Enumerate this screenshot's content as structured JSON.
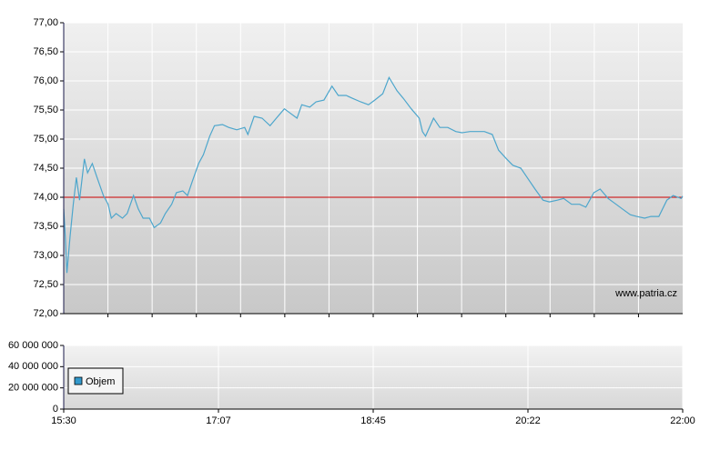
{
  "chart_data": [
    {
      "type": "line",
      "annotation": "www.patria.cz",
      "xlim": [
        930,
        1320
      ],
      "xgrid": [
        957.86,
        985.71,
        1013.57,
        1041.43,
        1069.29,
        1097.14,
        1125,
        1152.86,
        1180.71,
        1208.57,
        1236.43,
        1264.29,
        1292.14
      ],
      "ylim": [
        72,
        77
      ],
      "yticks": [
        {
          "value": 72,
          "label": "72,00"
        },
        {
          "value": 72.5,
          "label": "72,50"
        },
        {
          "value": 73,
          "label": "73,00"
        },
        {
          "value": 73.5,
          "label": "73,50"
        },
        {
          "value": 74,
          "label": "74,00"
        },
        {
          "value": 74.5,
          "label": "74,50"
        },
        {
          "value": 75,
          "label": "75,00"
        },
        {
          "value": 75.5,
          "label": "75,50"
        },
        {
          "value": 76,
          "label": "76,00"
        },
        {
          "value": 76.5,
          "label": "76,50"
        },
        {
          "value": 77,
          "label": "77,00"
        }
      ],
      "grid": true,
      "reference_line": {
        "value": 74,
        "color": "#cc0000"
      },
      "x": [
        930,
        931,
        932,
        934,
        936,
        938,
        940,
        943,
        945,
        948,
        951,
        955,
        958,
        960,
        963,
        967,
        970,
        974,
        977,
        980,
        984,
        987,
        991,
        994,
        998,
        1001,
        1005,
        1008,
        1011,
        1015,
        1018,
        1022,
        1025,
        1030,
        1034,
        1039,
        1044,
        1046,
        1050,
        1055,
        1060,
        1064,
        1069,
        1073,
        1077,
        1080,
        1085,
        1089,
        1094,
        1099,
        1103,
        1108,
        1112,
        1117,
        1122,
        1126,
        1131,
        1135,
        1140,
        1144,
        1149,
        1154,
        1156,
        1158,
        1163,
        1167,
        1172,
        1177,
        1181,
        1186,
        1190,
        1195,
        1200,
        1204,
        1209,
        1213,
        1218,
        1222,
        1227,
        1232,
        1236,
        1241,
        1245,
        1250,
        1255,
        1259,
        1264,
        1268,
        1273,
        1278,
        1282,
        1287,
        1291,
        1296,
        1300,
        1305,
        1310,
        1314,
        1319,
        1320
      ],
      "series": [
        {
          "color": "#4da6cc",
          "values": [
            73.8,
            73.33,
            72.7,
            73.33,
            73.88,
            74.34,
            73.95,
            74.66,
            74.42,
            74.58,
            74.34,
            74.03,
            73.88,
            73.64,
            73.72,
            73.64,
            73.72,
            74.03,
            73.8,
            73.64,
            73.64,
            73.48,
            73.56,
            73.72,
            73.88,
            74.08,
            74.11,
            74.03,
            74.27,
            74.58,
            74.73,
            75.05,
            75.23,
            75.25,
            75.2,
            75.16,
            75.2,
            75.08,
            75.39,
            75.36,
            75.23,
            75.36,
            75.52,
            75.44,
            75.36,
            75.59,
            75.55,
            75.64,
            75.67,
            75.91,
            75.75,
            75.75,
            75.7,
            75.64,
            75.59,
            75.67,
            75.78,
            76.06,
            75.83,
            75.7,
            75.52,
            75.36,
            75.13,
            75.05,
            75.36,
            75.2,
            75.2,
            75.13,
            75.11,
            75.13,
            75.13,
            75.13,
            75.08,
            74.81,
            74.66,
            74.55,
            74.5,
            74.34,
            74.14,
            73.95,
            73.92,
            73.95,
            73.98,
            73.88,
            73.88,
            73.83,
            74.08,
            74.14,
            73.98,
            73.88,
            73.8,
            73.7,
            73.67,
            73.64,
            73.67,
            73.67,
            73.95,
            74.03,
            73.98,
            74.02
          ]
        }
      ]
    },
    {
      "type": "bar",
      "xlim": [
        930,
        1320
      ],
      "xticks": [
        {
          "value": 930,
          "label": "15:30"
        },
        {
          "value": 1027.5,
          "label": "17:07"
        },
        {
          "value": 1125,
          "label": "18:45"
        },
        {
          "value": 1222.5,
          "label": "20:22"
        },
        {
          "value": 1320,
          "label": "22:00"
        }
      ],
      "ylim": [
        0,
        60000000
      ],
      "yticks": [
        0,
        {
          "value": 20000000,
          "label": "20 000 000"
        },
        {
          "value": 40000000,
          "label": "40 000 000"
        },
        {
          "value": 60000000,
          "label": "60 000 000"
        }
      ],
      "grid": true,
      "legend": "lower left",
      "series": [
        {
          "name": "Objem",
          "color": "#3399cc",
          "values": []
        }
      ]
    }
  ]
}
